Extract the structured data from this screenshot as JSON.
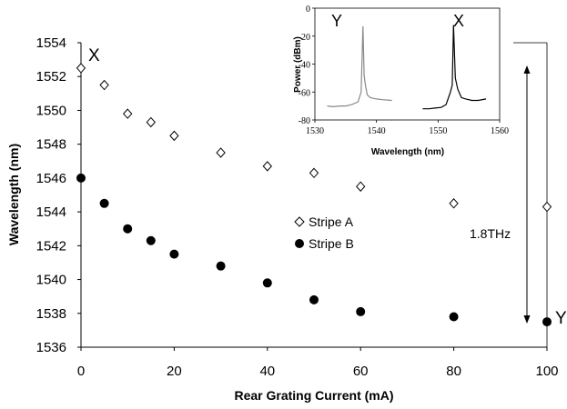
{
  "chart_data": [
    {
      "type": "scatter",
      "xlabel": "Rear Grating Current (mA)",
      "ylabel": "Wavelength (nm)",
      "xlim": [
        0,
        100
      ],
      "ylim": [
        1536,
        1554
      ],
      "x_ticks": [
        0,
        20,
        40,
        60,
        80,
        100
      ],
      "y_ticks": [
        1536,
        1538,
        1540,
        1542,
        1544,
        1546,
        1548,
        1550,
        1552,
        1554
      ],
      "grid": false,
      "legend_position": "center-right",
      "series": [
        {
          "name": "Stripe A",
          "marker": "open-diamond",
          "x": [
            0,
            5,
            10,
            15,
            20,
            30,
            40,
            50,
            60,
            80,
            100
          ],
          "y": [
            1552.5,
            1551.5,
            1549.8,
            1549.3,
            1548.5,
            1547.5,
            1546.7,
            1546.3,
            1545.5,
            1544.5,
            1544.3
          ]
        },
        {
          "name": "Stripe B",
          "marker": "filled-circle",
          "x": [
            0,
            5,
            10,
            15,
            20,
            30,
            40,
            50,
            60,
            80,
            100
          ],
          "y": [
            1546.0,
            1544.5,
            1543.0,
            1542.3,
            1541.5,
            1540.8,
            1539.8,
            1538.8,
            1538.1,
            1537.8,
            1537.5
          ]
        }
      ],
      "annotations": {
        "x_marker": "X",
        "y_marker": "Y",
        "span_label": "1.8THz"
      }
    },
    {
      "type": "line",
      "xlabel": "Wavelength (nm)",
      "ylabel": "Power (dBm)",
      "xlim": [
        1530,
        1560
      ],
      "ylim": [
        -80,
        0
      ],
      "x_ticks": [
        1530,
        1540,
        1550,
        1560
      ],
      "y_ticks": [
        0,
        -20,
        -40,
        -60,
        -80
      ],
      "series": [
        {
          "label": "Y",
          "color": "#888888",
          "x": [
            1532,
            1533,
            1534,
            1535,
            1536,
            1537,
            1537.5,
            1537.8,
            1538.0,
            1538.2,
            1538.5,
            1539,
            1540,
            1541,
            1542.5
          ],
          "y": [
            -70,
            -70.5,
            -70,
            -70,
            -69,
            -67,
            -60,
            -13,
            -48,
            -55,
            -62,
            -64,
            -65,
            -65.5,
            -66
          ]
        },
        {
          "label": "X",
          "color": "#000000",
          "x": [
            1547.5,
            1548.5,
            1549.5,
            1550.5,
            1551.3,
            1552.0,
            1552.3,
            1552.5,
            1552.8,
            1553.2,
            1553.8,
            1554.5,
            1555.5,
            1556.5,
            1557.8
          ],
          "y": [
            -72,
            -72,
            -71.5,
            -71,
            -69,
            -60,
            -55,
            -12,
            -50,
            -58,
            -64,
            -65,
            -66,
            -66,
            -65
          ]
        }
      ]
    }
  ]
}
